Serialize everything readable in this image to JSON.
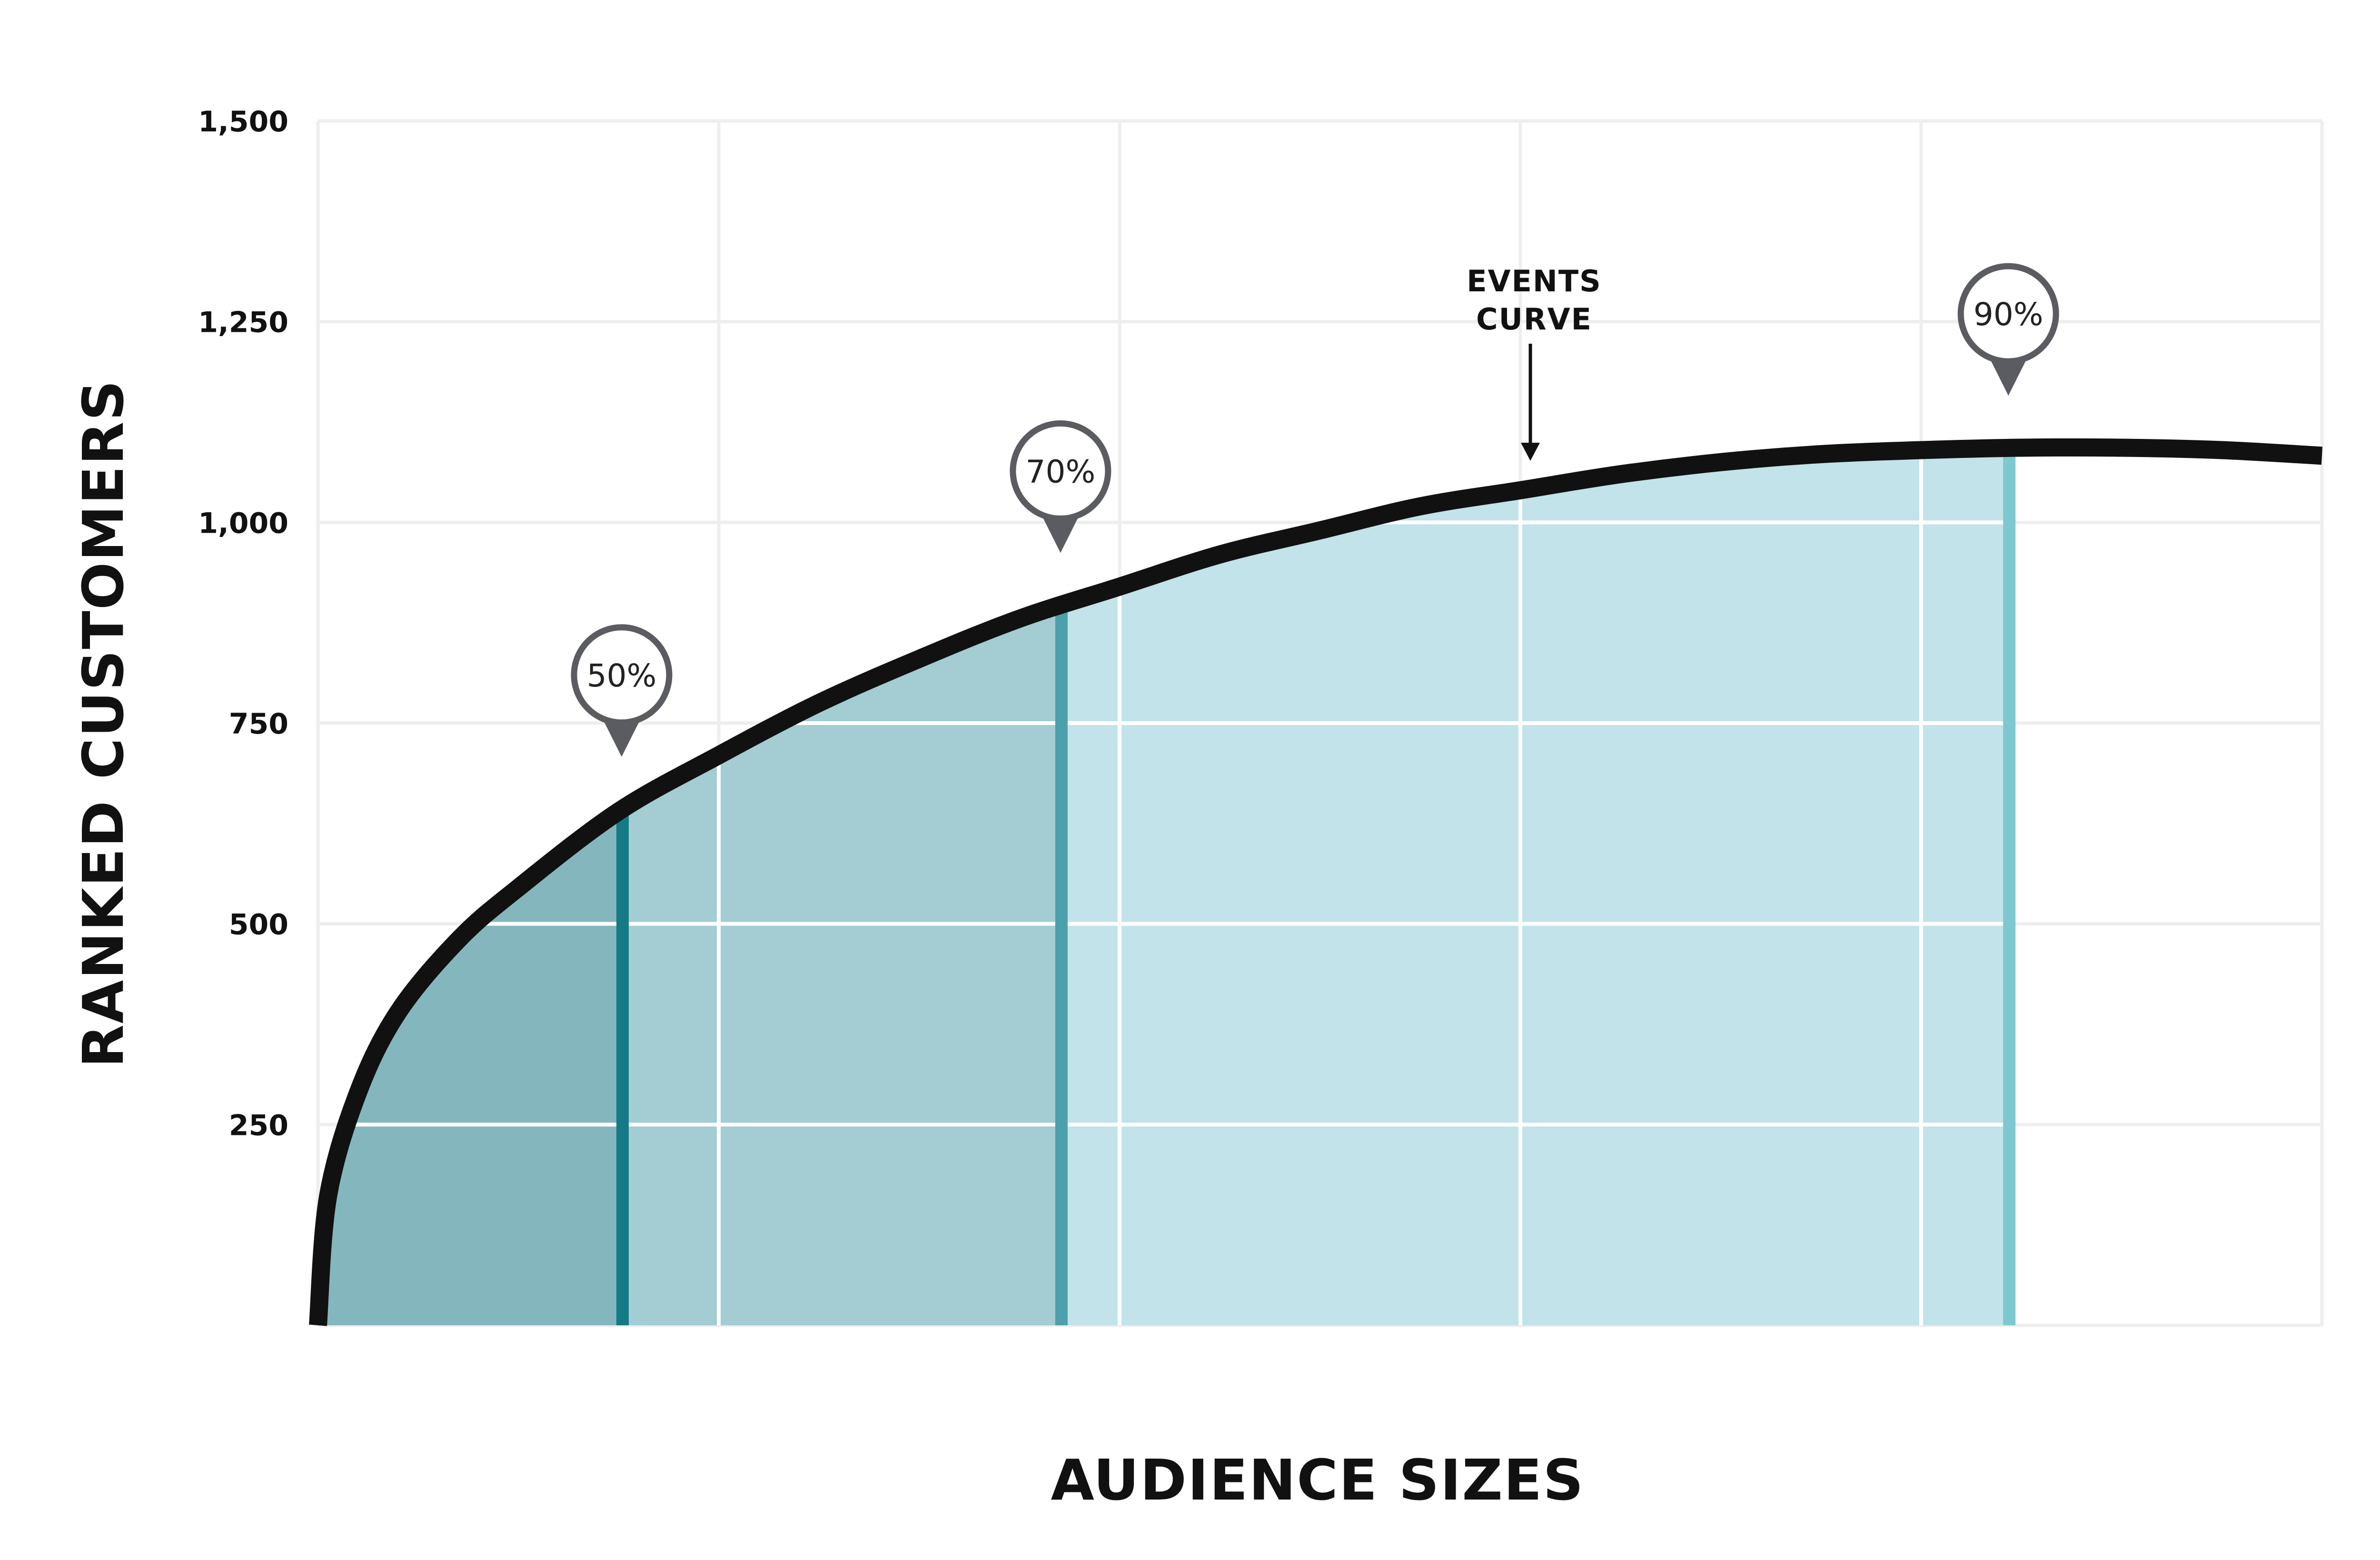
{
  "chart_data": {
    "type": "area",
    "xlabel": "AUDIENCE SIZES",
    "ylabel": "RANKED CUSTOMERS",
    "xlim": [
      0,
      100
    ],
    "ylim": [
      0,
      1500
    ],
    "y_ticks": [
      {
        "value": 250,
        "label": "250"
      },
      {
        "value": 500,
        "label": "500"
      },
      {
        "value": 750,
        "label": "750"
      },
      {
        "value": 1000,
        "label": "1,000"
      },
      {
        "value": 1250,
        "label": "1,250"
      },
      {
        "value": 1500,
        "label": "1,500"
      }
    ],
    "x_grid": [
      0,
      20,
      40,
      60,
      80,
      100
    ],
    "grid": true,
    "series": [
      {
        "x": [
          0,
          0.5,
          2,
          4,
          7,
          10,
          15,
          20,
          25,
          30,
          35,
          40,
          45,
          50,
          55,
          60,
          65,
          70,
          75,
          80,
          85,
          90,
          95,
          100
        ],
        "y": [
          0,
          160,
          290,
          390,
          480,
          545,
          640,
          710,
          775,
          830,
          880,
          920,
          960,
          990,
          1020,
          1040,
          1060,
          1075,
          1085,
          1090,
          1093,
          1093,
          1090,
          1083
        ]
      }
    ],
    "regions": [
      {
        "label": "50%",
        "x_end": 15.2,
        "color": "#84b7bd",
        "line_color": "#137a86"
      },
      {
        "label": "70%",
        "x_end": 37.1,
        "color": "#a3ccd3",
        "line_color": "#4ba0ab"
      },
      {
        "label": "90%",
        "x_end": 84.4,
        "color": "#c1e3e9",
        "line_color": "#7ec8cf"
      }
    ],
    "annotation": {
      "lines": [
        "EVENTS",
        "CURVE"
      ],
      "x": 60.5
    },
    "colors": {
      "curve": "#111111",
      "grid": "#eeeeee",
      "grid_on_fill": "#ffffff",
      "marker": "#5a5c61"
    }
  }
}
